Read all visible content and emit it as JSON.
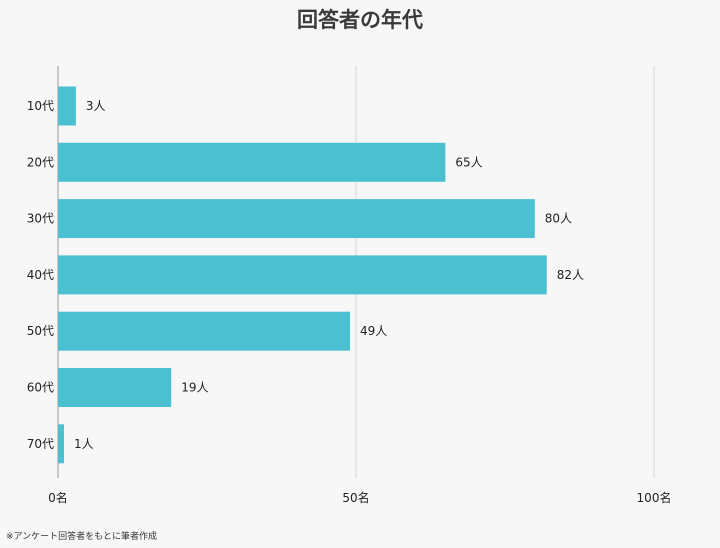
{
  "chart_data": {
    "type": "bar",
    "orientation": "horizontal",
    "title": "回答者の年代",
    "categories": [
      "10代",
      "20代",
      "30代",
      "40代",
      "50代",
      "60代",
      "70代"
    ],
    "values": [
      3,
      65,
      80,
      82,
      49,
      19,
      1
    ],
    "value_labels": [
      "3人",
      "65人",
      "80人",
      "82人",
      "49人",
      "19人",
      "1人"
    ],
    "xlim": [
      0,
      100
    ],
    "x_ticks": [
      0,
      50,
      100
    ],
    "x_tick_labels": [
      "0名",
      "50名",
      "100名"
    ],
    "grid": true,
    "bar_color": "#4bc0d1"
  },
  "footnote": "※アンケート回答者をもとに筆者作成"
}
